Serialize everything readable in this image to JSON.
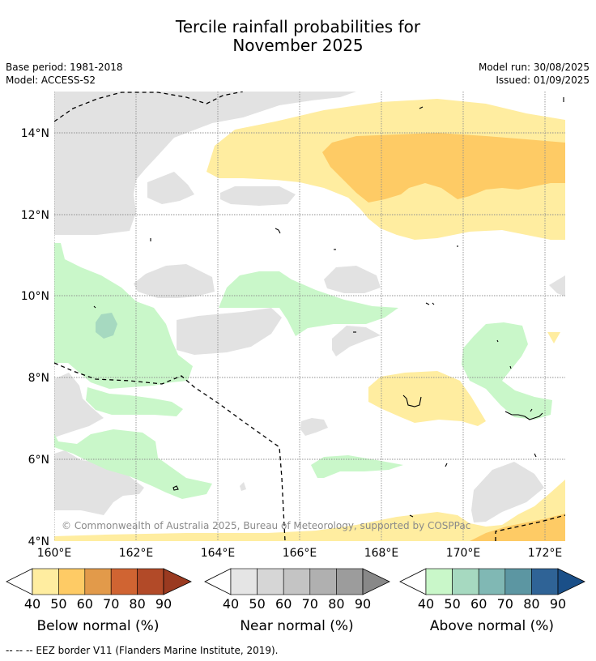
{
  "title_line1": "Tercile rainfall probabilities for",
  "title_line2": "November 2025",
  "base_period": "Base period: 1981-2018",
  "model": "Model: ACCESS-S2",
  "model_run": "Model run: 30/08/2025",
  "issued": "Issued: 01/09/2025",
  "lat_labels": [
    "14°N",
    "12°N",
    "10°N",
    "8°N",
    "6°N",
    "4°N"
  ],
  "lon_labels": [
    "160°E",
    "162°E",
    "164°E",
    "166°E",
    "168°E",
    "170°E",
    "172°E"
  ],
  "copyright": "© Commonwealth of Australia 2025, Bureau of Meteorology, supported by COSPPac",
  "colorbars": [
    {
      "title": "Below normal (%)",
      "ticks": [
        "40",
        "50",
        "60",
        "70",
        "80",
        "90"
      ],
      "colors": [
        "#ffffff",
        "#ffeda0",
        "#fecb65",
        "#e29a4a",
        "#d06432",
        "#b24a28",
        "#9a3a20"
      ]
    },
    {
      "title": "Near normal (%)",
      "ticks": [
        "40",
        "50",
        "60",
        "70",
        "80",
        "90"
      ],
      "colors": [
        "#ffffff",
        "#e5e5e5",
        "#d6d6d6",
        "#c4c4c4",
        "#b0b0b0",
        "#9c9c9c",
        "#888888"
      ]
    },
    {
      "title": "Above normal (%)",
      "ticks": [
        "40",
        "50",
        "60",
        "70",
        "80",
        "90"
      ],
      "colors": [
        "#ffffff",
        "#c9f7c9",
        "#a6d9c0",
        "#80b8b4",
        "#5c96a2",
        "#2f6396",
        "#1a4f88"
      ]
    }
  ],
  "footnote": "--  --  -- EEZ border V11 (Flanders Marine Institute, 2019).",
  "map_colors": {
    "near_normal_40": "#e2e2e2",
    "below_normal_40": "#ffeda0",
    "below_normal_50": "#fecb65",
    "above_normal_40": "#c9f7c9",
    "above_normal_50": "#a6d9c0"
  }
}
